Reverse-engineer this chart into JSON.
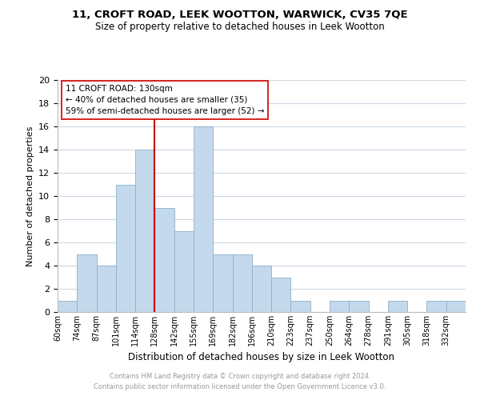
{
  "title1": "11, CROFT ROAD, LEEK WOOTTON, WARWICK, CV35 7QE",
  "title2": "Size of property relative to detached houses in Leek Wootton",
  "xlabel": "Distribution of detached houses by size in Leek Wootton",
  "ylabel": "Number of detached properties",
  "bin_labels": [
    "60sqm",
    "74sqm",
    "87sqm",
    "101sqm",
    "114sqm",
    "128sqm",
    "142sqm",
    "155sqm",
    "169sqm",
    "182sqm",
    "196sqm",
    "210sqm",
    "223sqm",
    "237sqm",
    "250sqm",
    "264sqm",
    "278sqm",
    "291sqm",
    "305sqm",
    "318sqm",
    "332sqm"
  ],
  "bar_values": [
    1,
    5,
    4,
    11,
    14,
    9,
    7,
    16,
    5,
    5,
    4,
    3,
    1,
    0,
    1,
    1,
    0,
    1,
    0,
    1,
    1
  ],
  "bar_color": "#c5d9ec",
  "bar_edge_color": "#8ab0cc",
  "vline_x_idx": 5,
  "vline_color": "#cc0000",
  "annotation_title": "11 CROFT ROAD: 130sqm",
  "annotation_line1": "← 40% of detached houses are smaller (35)",
  "annotation_line2": "59% of semi-detached houses are larger (52) →",
  "annotation_box_color": "#ffffff",
  "annotation_box_edge": "#cc0000",
  "ylim": [
    0,
    20
  ],
  "yticks": [
    0,
    2,
    4,
    6,
    8,
    10,
    12,
    14,
    16,
    18,
    20
  ],
  "footer1": "Contains HM Land Registry data © Crown copyright and database right 2024.",
  "footer2": "Contains public sector information licensed under the Open Government Licence v3.0.",
  "bg_color": "#ffffff",
  "grid_color": "#ccd8e4"
}
